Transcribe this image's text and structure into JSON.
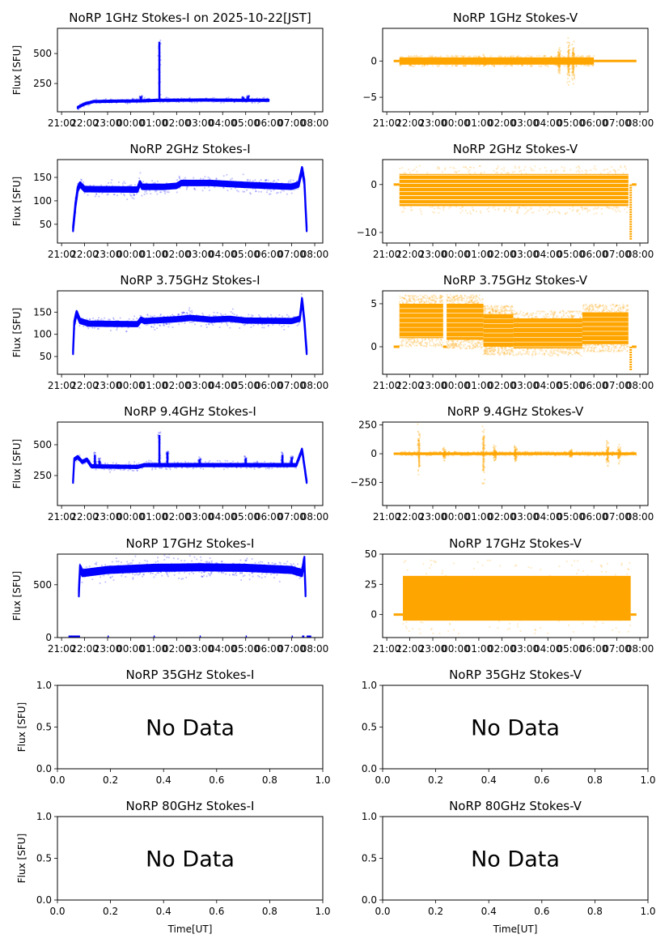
{
  "chart_data": [
    {
      "type": "scatter",
      "id": "1ghz-i",
      "title": "NoRP 1GHz Stokes-I on 2025-10-22[JST]",
      "ylabel": "Flux [SFU]",
      "xlabel": "",
      "color": "#0000ff",
      "xlim_hours_from_2100": [
        -0.18,
        11.35
      ],
      "ylim": [
        14,
        710
      ],
      "yticks": [
        250,
        500
      ],
      "xticklabels": [
        "21:00",
        "22:00",
        "23:00",
        "00:00",
        "01:00",
        "02:00",
        "03:00",
        "04:00",
        "05:00",
        "06:00",
        "07:00",
        "08:00"
      ],
      "data_span_hours": [
        0.7,
        9.0
      ],
      "baseline": [
        [
          0.7,
          50
        ],
        [
          1.0,
          80
        ],
        [
          1.4,
          100
        ],
        [
          3.3,
          105
        ],
        [
          4.3,
          110
        ],
        [
          6.0,
          112
        ],
        [
          9.0,
          110
        ]
      ],
      "spread": 6,
      "spikes": [
        {
          "t": 3.45,
          "peak": 150
        },
        {
          "t": 3.75,
          "peak": 120
        },
        {
          "t": 4.25,
          "peak": 630
        },
        {
          "t": 7.9,
          "peak": 140
        },
        {
          "t": 8.1,
          "peak": 150
        }
      ]
    },
    {
      "type": "scatter",
      "id": "1ghz-v",
      "title": "NoRP 1GHz Stokes-V",
      "ylabel": "",
      "xlabel": "",
      "color": "#ffa500",
      "xlim_hours_from_2100": [
        -0.18,
        11.35
      ],
      "ylim": [
        -7,
        4.5
      ],
      "yticks": [
        -5,
        0
      ],
      "xticklabels": [
        "21:00",
        "22:00",
        "23:00",
        "00:00",
        "01:00",
        "02:00",
        "03:00",
        "04:00",
        "05:00",
        "06:00",
        "07:00",
        "08:00"
      ],
      "data_span_hours": [
        0.3,
        10.85
      ],
      "zero_segments": [
        [
          0.3,
          0.55
        ],
        [
          9.0,
          10.85
        ]
      ],
      "band_span_hours": [
        0.55,
        9.0
      ],
      "band": [
        -0.5,
        0.5
      ],
      "spikes": [
        {
          "t": 4.25,
          "amp": 1.0
        },
        {
          "t": 7.5,
          "amp": 2.5
        },
        {
          "t": 7.9,
          "amp": 4.0
        },
        {
          "t": 8.1,
          "amp": 4.5
        }
      ]
    },
    {
      "type": "scatter",
      "id": "2ghz-i",
      "title": "NoRP 2GHz Stokes-I",
      "ylabel": "Flux [SFU]",
      "xlabel": "",
      "color": "#0000ff",
      "xlim_hours_from_2100": [
        -0.18,
        11.35
      ],
      "ylim": [
        10,
        188
      ],
      "yticks": [
        50,
        100,
        150
      ],
      "xticklabels": [
        "21:00",
        "22:00",
        "23:00",
        "00:00",
        "01:00",
        "02:00",
        "03:00",
        "04:00",
        "05:00",
        "06:00",
        "07:00",
        "08:00"
      ],
      "data_span_hours": [
        0.5,
        10.65
      ],
      "baseline": [
        [
          0.5,
          40
        ],
        [
          0.6,
          90
        ],
        [
          0.7,
          125
        ],
        [
          0.8,
          135
        ],
        [
          1.0,
          125
        ],
        [
          3.3,
          124
        ],
        [
          3.4,
          138
        ],
        [
          3.5,
          130
        ],
        [
          4.5,
          130
        ],
        [
          5.0,
          132
        ],
        [
          5.2,
          138
        ],
        [
          6.5,
          138
        ],
        [
          8.0,
          134
        ],
        [
          10.0,
          130
        ],
        [
          10.3,
          135
        ],
        [
          10.45,
          168
        ],
        [
          10.55,
          140
        ],
        [
          10.65,
          40
        ]
      ],
      "spread": 5
    },
    {
      "type": "scatter",
      "id": "2ghz-v",
      "title": "NoRP 2GHz Stokes-V",
      "ylabel": "",
      "xlabel": "",
      "color": "#ffa500",
      "xlim_hours_from_2100": [
        -0.18,
        11.35
      ],
      "ylim": [
        -12.2,
        5.2
      ],
      "yticks": [
        -10,
        0
      ],
      "xticklabels": [
        "21:00",
        "22:00",
        "23:00",
        "00:00",
        "01:00",
        "02:00",
        "03:00",
        "04:00",
        "05:00",
        "06:00",
        "07:00",
        "08:00"
      ],
      "data_span_hours": [
        0.3,
        10.85
      ],
      "zero_segments": [
        [
          0.3,
          0.55
        ],
        [
          10.65,
          10.85
        ]
      ],
      "band_span_hours": [
        0.55,
        10.5
      ],
      "band": [
        -4.5,
        2.2
      ],
      "levels_step": 0.85,
      "dip": {
        "t": 10.6,
        "min": -11.5
      }
    },
    {
      "type": "scatter",
      "id": "375ghz-i",
      "title": "NoRP 3.75GHz Stokes-I",
      "ylabel": "Flux [SFU]",
      "xlabel": "",
      "color": "#0000ff",
      "xlim_hours_from_2100": [
        -0.18,
        11.35
      ],
      "ylim": [
        10,
        198
      ],
      "yticks": [
        50,
        100,
        150
      ],
      "xticklabels": [
        "21:00",
        "22:00",
        "23:00",
        "00:00",
        "01:00",
        "02:00",
        "03:00",
        "04:00",
        "05:00",
        "06:00",
        "07:00",
        "08:00"
      ],
      "data_span_hours": [
        0.5,
        10.65
      ],
      "baseline": [
        [
          0.5,
          60
        ],
        [
          0.55,
          125
        ],
        [
          0.65,
          148
        ],
        [
          0.8,
          130
        ],
        [
          1.2,
          124
        ],
        [
          3.3,
          123
        ],
        [
          3.45,
          133
        ],
        [
          3.6,
          130
        ],
        [
          5.0,
          134
        ],
        [
          5.6,
          137
        ],
        [
          6.5,
          133
        ],
        [
          7.3,
          135
        ],
        [
          8.0,
          131
        ],
        [
          10.0,
          130
        ],
        [
          10.35,
          135
        ],
        [
          10.45,
          178
        ],
        [
          10.55,
          130
        ],
        [
          10.65,
          60
        ]
      ],
      "spread": 5
    },
    {
      "type": "scatter",
      "id": "375ghz-v",
      "title": "NoRP 3.75GHz Stokes-V",
      "ylabel": "",
      "xlabel": "",
      "color": "#ffa500",
      "xlim_hours_from_2100": [
        -0.18,
        11.35
      ],
      "ylim": [
        -3.2,
        6.5
      ],
      "yticks": [
        0,
        5
      ],
      "xticklabels": [
        "21:00",
        "22:00",
        "23:00",
        "00:00",
        "01:00",
        "02:00",
        "03:00",
        "04:00",
        "05:00",
        "06:00",
        "07:00",
        "08:00"
      ],
      "data_span_hours": [
        0.3,
        10.85
      ],
      "zero_segments": [
        [
          0.3,
          0.55
        ],
        [
          2.45,
          2.6
        ],
        [
          10.65,
          10.85
        ]
      ],
      "bands": [
        {
          "span": [
            0.55,
            2.45
          ],
          "range": [
            1.0,
            5.0
          ]
        },
        {
          "span": [
            2.6,
            4.2
          ],
          "range": [
            0.8,
            5.0
          ]
        },
        {
          "span": [
            4.2,
            5.5
          ],
          "range": [
            0.0,
            3.8
          ]
        },
        {
          "span": [
            5.5,
            8.5
          ],
          "range": [
            -0.2,
            3.3
          ]
        },
        {
          "span": [
            8.5,
            10.5
          ],
          "range": [
            0.3,
            4.0
          ]
        }
      ],
      "dip": {
        "t": 10.6,
        "min": -2.8
      }
    },
    {
      "type": "scatter",
      "id": "94ghz-i",
      "title": "NoRP 9.4GHz Stokes-I",
      "ylabel": "Flux [SFU]",
      "xlabel": "",
      "color": "#0000ff",
      "xlim_hours_from_2100": [
        -0.18,
        11.35
      ],
      "ylim": [
        7,
        684
      ],
      "yticks": [
        250,
        500
      ],
      "xticklabels": [
        "21:00",
        "22:00",
        "23:00",
        "00:00",
        "01:00",
        "02:00",
        "03:00",
        "04:00",
        "05:00",
        "06:00",
        "07:00",
        "08:00"
      ],
      "data_span_hours": [
        0.5,
        10.65
      ],
      "baseline": [
        [
          0.5,
          200
        ],
        [
          0.55,
          380
        ],
        [
          0.7,
          400
        ],
        [
          0.9,
          360
        ],
        [
          1.1,
          380
        ],
        [
          1.3,
          325
        ],
        [
          3.3,
          320
        ],
        [
          3.6,
          335
        ],
        [
          10.2,
          335
        ],
        [
          10.45,
          460
        ],
        [
          10.55,
          330
        ],
        [
          10.65,
          200
        ]
      ],
      "spread": 10,
      "spikes": [
        {
          "t": 1.45,
          "peak": 440
        },
        {
          "t": 1.65,
          "peak": 390
        },
        {
          "t": 4.25,
          "peak": 610
        },
        {
          "t": 4.6,
          "peak": 460
        },
        {
          "t": 6.0,
          "peak": 400
        },
        {
          "t": 8.0,
          "peak": 410
        },
        {
          "t": 9.6,
          "peak": 440
        },
        {
          "t": 10.0,
          "peak": 420
        }
      ]
    },
    {
      "type": "scatter",
      "id": "94ghz-v",
      "title": "NoRP 9.4GHz Stokes-V",
      "ylabel": "",
      "xlabel": "",
      "color": "#ffa500",
      "xlim_hours_from_2100": [
        -0.18,
        11.35
      ],
      "ylim": [
        -450,
        275
      ],
      "yticks": [
        -250,
        0,
        250
      ],
      "xticklabels": [
        "21:00",
        "22:00",
        "23:00",
        "00:00",
        "01:00",
        "02:00",
        "03:00",
        "04:00",
        "05:00",
        "06:00",
        "07:00",
        "08:00"
      ],
      "data_span_hours": [
        0.3,
        10.85
      ],
      "zero_segments": [
        [
          0.3,
          0.55
        ]
      ],
      "band_span_hours": [
        0.55,
        10.85
      ],
      "band": [
        -12,
        12
      ],
      "spikes": [
        {
          "t": 1.4,
          "amp": 300
        },
        {
          "t": 2.5,
          "amp": 70
        },
        {
          "t": 4.2,
          "amp": 380
        },
        {
          "t": 4.7,
          "amp": 90
        },
        {
          "t": 5.6,
          "amp": 100
        },
        {
          "t": 8.0,
          "amp": 60
        },
        {
          "t": 9.6,
          "amp": 150
        },
        {
          "t": 10.1,
          "amp": 100
        }
      ]
    },
    {
      "type": "scatter",
      "id": "17ghz-i",
      "title": "NoRP 17GHz Stokes-I",
      "ylabel": "Flux [SFU]",
      "xlabel": "",
      "color": "#0000ff",
      "xlim_hours_from_2100": [
        -0.18,
        11.35
      ],
      "ylim": [
        0,
        790
      ],
      "yticks": [
        0,
        500
      ],
      "xticklabels": [
        "21:00",
        "22:00",
        "23:00",
        "00:00",
        "01:00",
        "02:00",
        "03:00",
        "04:00",
        "05:00",
        "06:00",
        "07:00",
        "08:00"
      ],
      "data_span_hours": [
        0.75,
        10.6
      ],
      "baseline": [
        [
          0.75,
          420
        ],
        [
          0.8,
          660
        ],
        [
          0.9,
          610
        ],
        [
          2.0,
          640
        ],
        [
          4.0,
          660
        ],
        [
          6.0,
          665
        ],
        [
          8.0,
          660
        ],
        [
          10.0,
          640
        ],
        [
          10.45,
          610
        ],
        [
          10.55,
          740
        ],
        [
          10.6,
          420
        ]
      ],
      "spread": 30,
      "zero_markers": [
        [
          0.3,
          0.8
        ],
        [
          2.0,
          2.05
        ],
        [
          4.0,
          4.05
        ],
        [
          6.0,
          6.05
        ],
        [
          8.0,
          8.05
        ],
        [
          10.0,
          10.05
        ],
        [
          10.45,
          10.55
        ],
        [
          10.65,
          10.85
        ]
      ]
    },
    {
      "type": "scatter",
      "id": "17ghz-v",
      "title": "NoRP 17GHz Stokes-V",
      "ylabel": "",
      "xlabel": "",
      "color": "#ffa500",
      "xlim_hours_from_2100": [
        -0.18,
        11.35
      ],
      "ylim": [
        -19,
        50
      ],
      "yticks": [
        0,
        25,
        50
      ],
      "xticklabels": [
        "21:00",
        "22:00",
        "23:00",
        "00:00",
        "01:00",
        "02:00",
        "03:00",
        "04:00",
        "05:00",
        "06:00",
        "07:00",
        "08:00"
      ],
      "data_span_hours": [
        0.3,
        10.85
      ],
      "zero_segments": [
        [
          0.3,
          0.7
        ],
        [
          10.6,
          10.85
        ]
      ],
      "band_span_hours": [
        0.7,
        10.6
      ],
      "band": [
        -5,
        32
      ],
      "outlier_range": [
        -16,
        45
      ]
    },
    {
      "type": "scatter",
      "id": "35ghz-i",
      "title": "NoRP 35GHz Stokes-I",
      "ylabel": "Flux [SFU]",
      "xlabel": "",
      "no_data": true,
      "annotation": "No Data",
      "xlim": [
        0,
        1
      ],
      "ylim": [
        0,
        1
      ],
      "xticklabels": [
        "0.0",
        "0.2",
        "0.4",
        "0.6",
        "0.8",
        "1.0"
      ],
      "yticklabels": [
        "0.0",
        "0.5",
        "1.0"
      ]
    },
    {
      "type": "scatter",
      "id": "35ghz-v",
      "title": "NoRP 35GHz Stokes-V",
      "ylabel": "",
      "xlabel": "",
      "no_data": true,
      "annotation": "No Data",
      "xlim": [
        0,
        1
      ],
      "ylim": [
        0,
        1
      ],
      "xticklabels": [
        "0.0",
        "0.2",
        "0.4",
        "0.6",
        "0.8",
        "1.0"
      ],
      "yticklabels": [
        "0.0",
        "0.5",
        "1.0"
      ]
    },
    {
      "type": "scatter",
      "id": "80ghz-i",
      "title": "NoRP 80GHz Stokes-I",
      "ylabel": "Flux [SFU]",
      "xlabel": "Time[UT]",
      "no_data": true,
      "annotation": "No Data",
      "xlim": [
        0,
        1
      ],
      "ylim": [
        0,
        1
      ],
      "xticklabels": [
        "0.0",
        "0.2",
        "0.4",
        "0.6",
        "0.8",
        "1.0"
      ],
      "yticklabels": [
        "0.0",
        "0.5",
        "1.0"
      ]
    },
    {
      "type": "scatter",
      "id": "80ghz-v",
      "title": "NoRP 80GHz Stokes-V",
      "ylabel": "",
      "xlabel": "Time[UT]",
      "no_data": true,
      "annotation": "No Data",
      "xlim": [
        0,
        1
      ],
      "ylim": [
        0,
        1
      ],
      "xticklabels": [
        "0.0",
        "0.2",
        "0.4",
        "0.6",
        "0.8",
        "1.0"
      ],
      "yticklabels": [
        "0.0",
        "0.5",
        "1.0"
      ]
    }
  ]
}
